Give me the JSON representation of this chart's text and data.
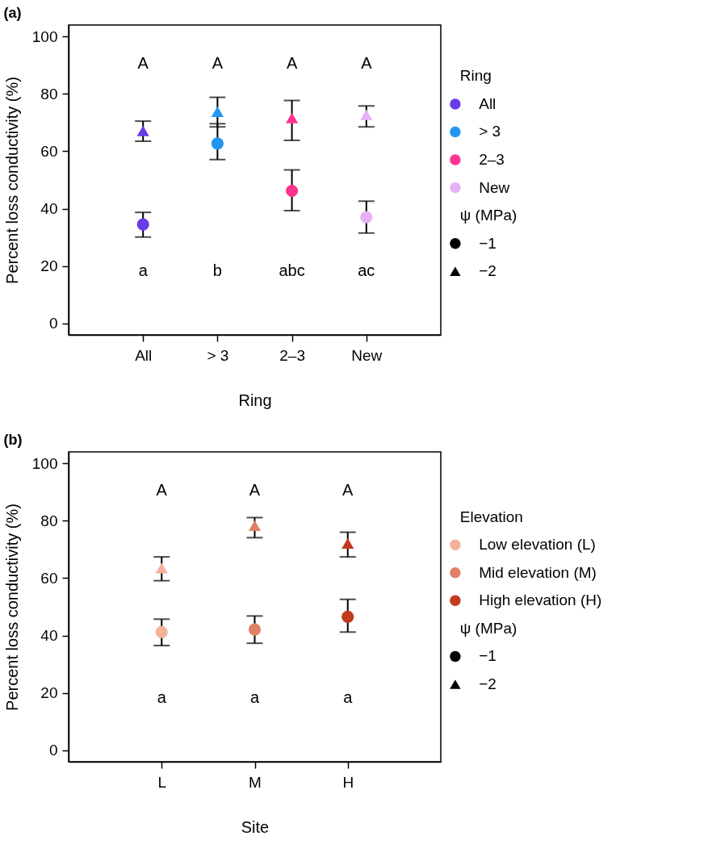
{
  "chart_data": [
    {
      "type": "scatter",
      "title": "(a)",
      "xlabel": "Ring",
      "ylabel": "Percent loss conductivity (%)",
      "legend_title": "Ring",
      "legend": "right",
      "categories": [
        "All",
        "> 3",
        "2–3",
        "New"
      ],
      "ylim": [
        -4,
        104
      ],
      "yticks": [
        0,
        20,
        40,
        60,
        80,
        100
      ],
      "series": [
        {
          "name": "All",
          "color": "#6a3be8",
          "marker": "circle",
          "values": [
            34.5,
            null,
            null,
            null
          ],
          "errors": [
            [
              30.1,
              38.7
            ],
            null,
            null,
            null
          ]
        },
        {
          "name": "> 3",
          "color": "#2196f0",
          "marker": "circle",
          "values": [
            null,
            62.7,
            null,
            null
          ],
          "errors": [
            null,
            [
              57.1,
              69.6
            ],
            null,
            null
          ]
        },
        {
          "name": "2–3",
          "color": "#ff3390",
          "marker": "circle",
          "values": [
            null,
            null,
            46.2,
            null
          ],
          "errors": [
            null,
            null,
            [
              39.3,
              53.5
            ],
            null
          ]
        },
        {
          "name": "New",
          "color": "#e8b0f8",
          "marker": "circle",
          "values": [
            null,
            null,
            null,
            37.0
          ],
          "errors": [
            null,
            null,
            null,
            [
              31.5,
              42.6
            ]
          ]
        },
        {
          "color": "#6a3be8",
          "marker": "triangle",
          "values": [
            67.1,
            null,
            null,
            null
          ],
          "errors": [
            [
              63.5,
              70.5
            ],
            null,
            null,
            null
          ]
        },
        {
          "color": "#2196f0",
          "marker": "triangle",
          "values": [
            null,
            73.8,
            null,
            null
          ],
          "errors": [
            null,
            [
              68.5,
              78.8
            ],
            null,
            null
          ]
        },
        {
          "color": "#ff3390",
          "marker": "triangle",
          "values": [
            null,
            null,
            71.6,
            null
          ],
          "errors": [
            null,
            null,
            [
              63.8,
              77.7
            ],
            null
          ]
        },
        {
          "color": "#e8b0f8",
          "marker": "triangle",
          "values": [
            null,
            null,
            null,
            72.7
          ],
          "errors": [
            null,
            null,
            null,
            [
              68.5,
              75.8
            ]
          ]
        },
        {
          "name": "−1",
          "color": "#000000",
          "marker": "circle",
          "values": [
            null,
            null,
            null,
            null
          ]
        },
        {
          "name": "−2",
          "color": "#000000",
          "marker": "triangle",
          "values": [
            null,
            null,
            null,
            null
          ]
        }
      ],
      "annotations": [
        "A",
        "A",
        "A",
        "A",
        "a",
        "b",
        "abc",
        "ac",
        "ψ (MPa)"
      ]
    },
    {
      "type": "scatter",
      "title": "(b)",
      "xlabel": "Site",
      "ylabel": "Percent loss conductivity (%)",
      "legend_title": "Elevation",
      "legend": "right",
      "categories": [
        "L",
        "M",
        "H"
      ],
      "ylim": [
        -4,
        104
      ],
      "yticks": [
        0,
        20,
        40,
        60,
        80,
        100
      ],
      "series": [
        {
          "name": "Low elevation (L)",
          "color": "#f5b09a",
          "marker": "circle",
          "values": [
            41.2,
            null,
            null
          ],
          "errors": [
            [
              36.5,
              45.7
            ],
            null,
            null
          ]
        },
        {
          "name": "Mid elevation (M)",
          "color": "#e08068",
          "marker": "circle",
          "values": [
            null,
            42.1,
            null
          ],
          "errors": [
            null,
            [
              37.3,
              46.8
            ],
            null
          ]
        },
        {
          "name": "High elevation (H)",
          "color": "#c23a20",
          "marker": "circle",
          "values": [
            null,
            null,
            46.5
          ],
          "errors": [
            null,
            null,
            [
              41.2,
              52.6
            ]
          ]
        },
        {
          "color": "#f5b09a",
          "marker": "triangle",
          "values": [
            63.5,
            null,
            null
          ],
          "errors": [
            [
              59.1,
              67.4
            ],
            null,
            null
          ]
        },
        {
          "color": "#e08068",
          "marker": "triangle",
          "values": [
            null,
            78.3,
            null
          ],
          "errors": [
            null,
            [
              74.1,
              81.1
            ],
            null
          ]
        },
        {
          "color": "#c23a20",
          "marker": "triangle",
          "values": [
            null,
            null,
            72.1
          ],
          "errors": [
            null,
            null,
            [
              67.4,
              76.0
            ]
          ]
        },
        {
          "name": "−1",
          "color": "#000000",
          "marker": "circle",
          "values": [
            null,
            null,
            null
          ]
        },
        {
          "name": "−2",
          "color": "#000000",
          "marker": "triangle",
          "values": [
            null,
            null,
            null
          ]
        }
      ],
      "annotations": [
        "A",
        "A",
        "A",
        "a",
        "a",
        "a",
        "ψ (MPa)"
      ]
    }
  ]
}
